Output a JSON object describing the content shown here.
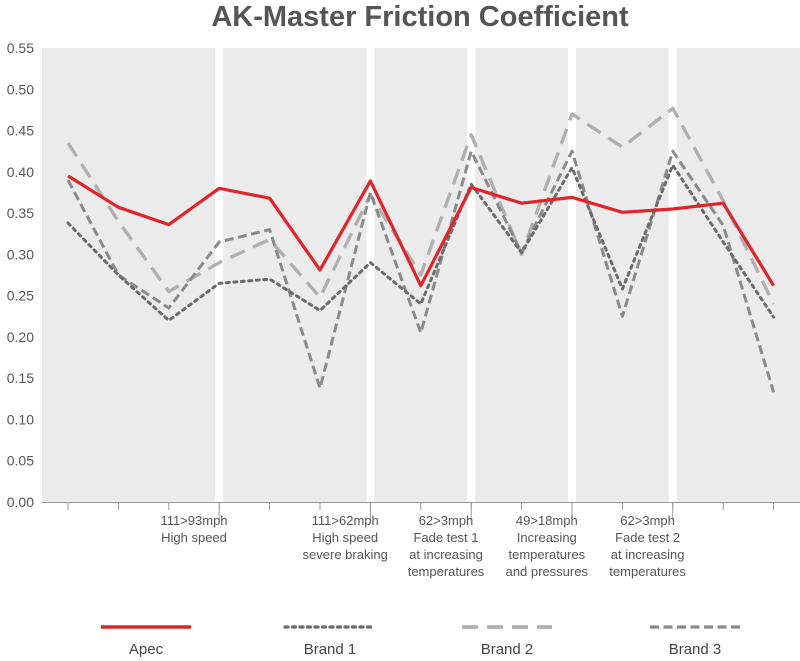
{
  "chart_data": {
    "type": "line",
    "title": "AK-Master Friction Coefficient",
    "ylim": [
      0,
      0.55
    ],
    "yticks": [
      "0.00",
      "0.05",
      "0.10",
      "0.15",
      "0.20",
      "0.25",
      "0.30",
      "0.35",
      "0.40",
      "0.45",
      "0.50",
      "0.55"
    ],
    "x": [
      1,
      2,
      3,
      4,
      5,
      6,
      7,
      8,
      9,
      10,
      11,
      12,
      13,
      14
    ],
    "category_labels": [
      {
        "at": 2.5,
        "lines": [
          "111>93mph",
          "High speed"
        ]
      },
      {
        "at": 5.5,
        "lines": [
          "111>62mph",
          "High speed",
          "severe braking"
        ]
      },
      {
        "at": 7.5,
        "lines": [
          "62>3mph",
          "Fade test 1",
          "at increasing",
          "temperatures"
        ]
      },
      {
        "at": 9.5,
        "lines": [
          "49>18mph",
          "Increasing",
          "temperatures",
          "and pressures"
        ]
      },
      {
        "at": 11.5,
        "lines": [
          "62>3mph",
          "Fade test 2",
          "at increasing",
          "temperatures"
        ]
      }
    ],
    "separators": [
      3,
      6,
      8,
      10,
      12
    ],
    "series": [
      {
        "name": "Apec",
        "color": "#e0242b",
        "style": "solid",
        "values": [
          0.395,
          0.357,
          0.336,
          0.38,
          0.368,
          0.281,
          0.389,
          0.262,
          0.381,
          0.362,
          0.369,
          0.351,
          0.355,
          0.362,
          0.262
        ]
      },
      {
        "name": "Brand 1",
        "color": "#6b6b6b",
        "style": "dotted",
        "values": [
          0.338,
          0.275,
          0.22,
          0.265,
          0.27,
          0.232,
          0.29,
          0.24,
          0.385,
          0.302,
          0.405,
          0.258,
          0.408,
          0.315,
          0.224
        ]
      },
      {
        "name": "Brand 2",
        "color": "#b0b0b0",
        "style": "dashed",
        "values": [
          0.435,
          0.34,
          0.255,
          0.29,
          0.318,
          0.248,
          0.372,
          0.275,
          0.445,
          0.3,
          0.47,
          0.43,
          0.477,
          0.365,
          0.24
        ]
      },
      {
        "name": "Brand 3",
        "color": "#8a8a8a",
        "style": "dashdot",
        "values": [
          0.39,
          0.275,
          0.235,
          0.315,
          0.33,
          0.138,
          0.375,
          0.205,
          0.425,
          0.302,
          0.425,
          0.225,
          0.425,
          0.335,
          0.133
        ]
      }
    ],
    "x_values": [
      0,
      1,
      2,
      3,
      4,
      5,
      6,
      7,
      8,
      9,
      10,
      11,
      12,
      13,
      14
    ],
    "legend_position": "bottom",
    "grid": false
  }
}
